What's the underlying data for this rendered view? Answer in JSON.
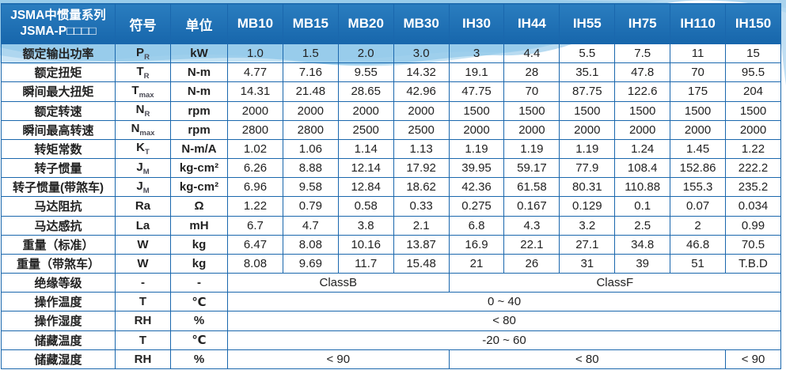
{
  "table": {
    "corner": {
      "line1": "JSMA中惯量系列",
      "line2": "JSMA-P□□□□"
    },
    "col_headers": {
      "symbol": "符号",
      "unit": "单位",
      "models": [
        "MB10",
        "MB15",
        "MB20",
        "MB30",
        "IH30",
        "IH44",
        "IH55",
        "IH75",
        "IH110",
        "IH150"
      ]
    },
    "rows": [
      {
        "label": "额定输出功率",
        "sym": "P",
        "sub": "R",
        "unit": "kW",
        "values": [
          "1.0",
          "1.5",
          "2.0",
          "3.0",
          "3",
          "4.4",
          "5.5",
          "7.5",
          "11",
          "15"
        ]
      },
      {
        "label": "额定扭矩",
        "sym": "T",
        "sub": "R",
        "unit": "N-m",
        "values": [
          "4.77",
          "7.16",
          "9.55",
          "14.32",
          "19.1",
          "28",
          "35.1",
          "47.8",
          "70",
          "95.5"
        ]
      },
      {
        "label": "瞬间最大扭矩",
        "sym": "T",
        "sub": "max",
        "unit": "N-m",
        "values": [
          "14.31",
          "21.48",
          "28.65",
          "42.96",
          "47.75",
          "70",
          "87.75",
          "122.6",
          "175",
          "204"
        ]
      },
      {
        "label": "额定转速",
        "sym": "N",
        "sub": "R",
        "unit": "rpm",
        "values": [
          "2000",
          "2000",
          "2000",
          "2000",
          "1500",
          "1500",
          "1500",
          "1500",
          "1500",
          "1500"
        ]
      },
      {
        "label": "瞬间最高转速",
        "sym": "N",
        "sub": "max",
        "unit": "rpm",
        "values": [
          "2800",
          "2800",
          "2500",
          "2500",
          "2000",
          "2000",
          "2000",
          "2000",
          "2000",
          "2000"
        ]
      },
      {
        "label": "转矩常数",
        "sym": "K",
        "sub": "T",
        "unit": "N-m/A",
        "values": [
          "1.02",
          "1.06",
          "1.14",
          "1.13",
          "1.19",
          "1.19",
          "1.19",
          "1.24",
          "1.45",
          "1.22"
        ]
      },
      {
        "label": "转子惯量",
        "sym": "J",
        "sub": "M",
        "unit": "kg-cm²",
        "values": [
          "6.26",
          "8.88",
          "12.14",
          "17.92",
          "39.95",
          "59.17",
          "77.9",
          "108.4",
          "152.86",
          "222.2"
        ]
      },
      {
        "label": "转子惯量(带煞车)",
        "sym": "J",
        "sub": "M",
        "unit": "kg-cm²",
        "values": [
          "6.96",
          "9.58",
          "12.84",
          "18.62",
          "42.36",
          "61.58",
          "80.31",
          "110.88",
          "155.3",
          "235.2"
        ]
      },
      {
        "label": "马达阻抗",
        "sym": "Ra",
        "sub": "",
        "unit": "Ω",
        "values": [
          "1.22",
          "0.79",
          "0.58",
          "0.33",
          "0.275",
          "0.167",
          "0.129",
          "0.1",
          "0.07",
          "0.034"
        ]
      },
      {
        "label": "马达感抗",
        "sym": "La",
        "sub": "",
        "unit": "mH",
        "values": [
          "6.7",
          "4.7",
          "3.8",
          "2.1",
          "6.8",
          "4.3",
          "3.2",
          "2.5",
          "2",
          "0.99"
        ]
      },
      {
        "label": "重量（标准）",
        "sym": "W",
        "sub": "",
        "unit": "kg",
        "values": [
          "6.47",
          "8.08",
          "10.16",
          "13.87",
          "16.9",
          "22.1",
          "27.1",
          "34.8",
          "46.8",
          "70.5"
        ]
      },
      {
        "label": "重量（带煞车）",
        "sym": "W",
        "sub": "",
        "unit": "kg",
        "values": [
          "8.08",
          "9.69",
          "11.7",
          "15.48",
          "21",
          "26",
          "31",
          "39",
          "51",
          "T.B.D"
        ]
      },
      {
        "label": "绝缘等级",
        "sym": "-",
        "sub": "",
        "unit": "-",
        "spans": [
          {
            "text": "ClassB",
            "cols": 4
          },
          {
            "text": "ClassF",
            "cols": 6
          }
        ]
      },
      {
        "label": "操作温度",
        "sym": "T",
        "sub": "",
        "unit": "℃",
        "spans": [
          {
            "text": "0 ~ 40",
            "cols": 10
          }
        ]
      },
      {
        "label": "操作湿度",
        "sym": "RH",
        "sub": "",
        "unit": "%",
        "spans": [
          {
            "text": "< 80",
            "cols": 10
          }
        ]
      },
      {
        "label": "储藏温度",
        "sym": "T",
        "sub": "",
        "unit": "℃",
        "spans": [
          {
            "text": "-20 ~ 60",
            "cols": 10
          }
        ]
      },
      {
        "label": "储藏湿度",
        "sym": "RH",
        "sub": "",
        "unit": "%",
        "spans": [
          {
            "text": "< 90",
            "cols": 4
          },
          {
            "text": "< 80",
            "cols": 5
          },
          {
            "text": "< 90",
            "cols": 1
          }
        ]
      }
    ]
  },
  "colors": {
    "header-blue-1": "#2a7dbf",
    "header-blue-2": "#1766ab",
    "grid-blue": "#1a67ad",
    "text-dark": "#222222",
    "header-text": "#ffffff",
    "swoosh-light": "#cde6f6",
    "swoosh-mid": "#a6d2ee",
    "swoosh-deep": "#7fc0e6"
  }
}
